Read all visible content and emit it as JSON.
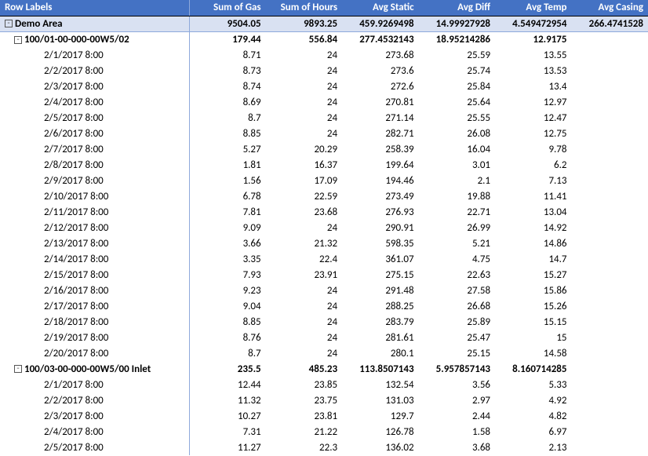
{
  "headers": {
    "row_labels": "Row Labels",
    "sum_gas": "Sum of Gas",
    "sum_hours": "Sum of Hours",
    "avg_static": "Avg Static",
    "avg_diff": "Avg Diff",
    "avg_temp": "Avg Temp",
    "avg_casing": "Avg Casing"
  },
  "grand": {
    "label": "Demo Area",
    "sum_gas": "9504.05",
    "sum_hours": "9893.25",
    "avg_static": "459.9269498",
    "avg_diff": "14.99927928",
    "avg_temp": "4.549472954",
    "avg_casing": "266.4741528"
  },
  "group1": {
    "label": "100/01-00-000-00W5/02",
    "sum_gas": "179.44",
    "sum_hours": "556.84",
    "avg_static": "277.4532143",
    "avg_diff": "18.95214286",
    "avg_temp": "12.9175",
    "avg_casing": ""
  },
  "group1_rows": [
    {
      "label": "2/1/2017 8:00",
      "sum_gas": "8.71",
      "sum_hours": "24",
      "avg_static": "273.68",
      "avg_diff": "25.59",
      "avg_temp": "13.55",
      "avg_casing": ""
    },
    {
      "label": "2/2/2017 8:00",
      "sum_gas": "8.73",
      "sum_hours": "24",
      "avg_static": "273.6",
      "avg_diff": "25.74",
      "avg_temp": "13.53",
      "avg_casing": ""
    },
    {
      "label": "2/3/2017 8:00",
      "sum_gas": "8.74",
      "sum_hours": "24",
      "avg_static": "272.6",
      "avg_diff": "25.84",
      "avg_temp": "13.4",
      "avg_casing": ""
    },
    {
      "label": "2/4/2017 8:00",
      "sum_gas": "8.69",
      "sum_hours": "24",
      "avg_static": "270.81",
      "avg_diff": "25.64",
      "avg_temp": "12.97",
      "avg_casing": ""
    },
    {
      "label": "2/5/2017 8:00",
      "sum_gas": "8.7",
      "sum_hours": "24",
      "avg_static": "271.14",
      "avg_diff": "25.55",
      "avg_temp": "12.47",
      "avg_casing": ""
    },
    {
      "label": "2/6/2017 8:00",
      "sum_gas": "8.85",
      "sum_hours": "24",
      "avg_static": "282.71",
      "avg_diff": "26.08",
      "avg_temp": "12.75",
      "avg_casing": ""
    },
    {
      "label": "2/7/2017 8:00",
      "sum_gas": "5.27",
      "sum_hours": "20.29",
      "avg_static": "258.39",
      "avg_diff": "16.04",
      "avg_temp": "9.78",
      "avg_casing": ""
    },
    {
      "label": "2/8/2017 8:00",
      "sum_gas": "1.81",
      "sum_hours": "16.37",
      "avg_static": "199.64",
      "avg_diff": "3.01",
      "avg_temp": "6.2",
      "avg_casing": ""
    },
    {
      "label": "2/9/2017 8:00",
      "sum_gas": "1.56",
      "sum_hours": "17.09",
      "avg_static": "194.46",
      "avg_diff": "2.1",
      "avg_temp": "7.13",
      "avg_casing": ""
    },
    {
      "label": "2/10/2017 8:00",
      "sum_gas": "6.78",
      "sum_hours": "22.59",
      "avg_static": "273.49",
      "avg_diff": "19.88",
      "avg_temp": "11.41",
      "avg_casing": ""
    },
    {
      "label": "2/11/2017 8:00",
      "sum_gas": "7.81",
      "sum_hours": "23.68",
      "avg_static": "276.93",
      "avg_diff": "22.71",
      "avg_temp": "13.04",
      "avg_casing": ""
    },
    {
      "label": "2/12/2017 8:00",
      "sum_gas": "9.09",
      "sum_hours": "24",
      "avg_static": "290.91",
      "avg_diff": "26.99",
      "avg_temp": "14.92",
      "avg_casing": ""
    },
    {
      "label": "2/13/2017 8:00",
      "sum_gas": "3.66",
      "sum_hours": "21.32",
      "avg_static": "598.35",
      "avg_diff": "5.21",
      "avg_temp": "14.86",
      "avg_casing": ""
    },
    {
      "label": "2/14/2017 8:00",
      "sum_gas": "3.35",
      "sum_hours": "22.4",
      "avg_static": "361.07",
      "avg_diff": "4.75",
      "avg_temp": "14.7",
      "avg_casing": ""
    },
    {
      "label": "2/15/2017 8:00",
      "sum_gas": "7.93",
      "sum_hours": "23.91",
      "avg_static": "275.15",
      "avg_diff": "22.63",
      "avg_temp": "15.27",
      "avg_casing": ""
    },
    {
      "label": "2/16/2017 8:00",
      "sum_gas": "9.23",
      "sum_hours": "24",
      "avg_static": "291.48",
      "avg_diff": "27.58",
      "avg_temp": "15.86",
      "avg_casing": ""
    },
    {
      "label": "2/17/2017 8:00",
      "sum_gas": "9.04",
      "sum_hours": "24",
      "avg_static": "288.25",
      "avg_diff": "26.68",
      "avg_temp": "15.26",
      "avg_casing": ""
    },
    {
      "label": "2/18/2017 8:00",
      "sum_gas": "8.85",
      "sum_hours": "24",
      "avg_static": "283.79",
      "avg_diff": "25.89",
      "avg_temp": "15.15",
      "avg_casing": ""
    },
    {
      "label": "2/19/2017 8:00",
      "sum_gas": "8.76",
      "sum_hours": "24",
      "avg_static": "281.61",
      "avg_diff": "25.47",
      "avg_temp": "15",
      "avg_casing": ""
    },
    {
      "label": "2/20/2017 8:00",
      "sum_gas": "8.7",
      "sum_hours": "24",
      "avg_static": "280.1",
      "avg_diff": "25.15",
      "avg_temp": "14.58",
      "avg_casing": ""
    }
  ],
  "group2": {
    "label": "100/03-00-000-00W5/00 Inlet",
    "sum_gas": "235.5",
    "sum_hours": "485.23",
    "avg_static": "113.8507143",
    "avg_diff": "5.957857143",
    "avg_temp": "8.160714285",
    "avg_casing": ""
  },
  "group2_rows": [
    {
      "label": "2/1/2017 8:00",
      "sum_gas": "12.44",
      "sum_hours": "23.85",
      "avg_static": "132.54",
      "avg_diff": "3.56",
      "avg_temp": "5.33",
      "avg_casing": ""
    },
    {
      "label": "2/2/2017 8:00",
      "sum_gas": "11.32",
      "sum_hours": "23.75",
      "avg_static": "131.03",
      "avg_diff": "2.97",
      "avg_temp": "4.92",
      "avg_casing": ""
    },
    {
      "label": "2/3/2017 8:00",
      "sum_gas": "10.27",
      "sum_hours": "23.81",
      "avg_static": "129.7",
      "avg_diff": "2.44",
      "avg_temp": "4.82",
      "avg_casing": ""
    },
    {
      "label": "2/4/2017 8:00",
      "sum_gas": "7.31",
      "sum_hours": "21.22",
      "avg_static": "126.78",
      "avg_diff": "1.58",
      "avg_temp": "6.97",
      "avg_casing": ""
    },
    {
      "label": "2/5/2017 8:00",
      "sum_gas": "11.27",
      "sum_hours": "22.3",
      "avg_static": "136.02",
      "avg_diff": "3.68",
      "avg_temp": "2.13",
      "avg_casing": ""
    }
  ],
  "toggle_glyph": "-",
  "colors": {
    "header_bg": "#4472c4",
    "header_fg": "#ffffff",
    "grand_bg": "#d9e1f2",
    "border": "#8ea9db"
  }
}
